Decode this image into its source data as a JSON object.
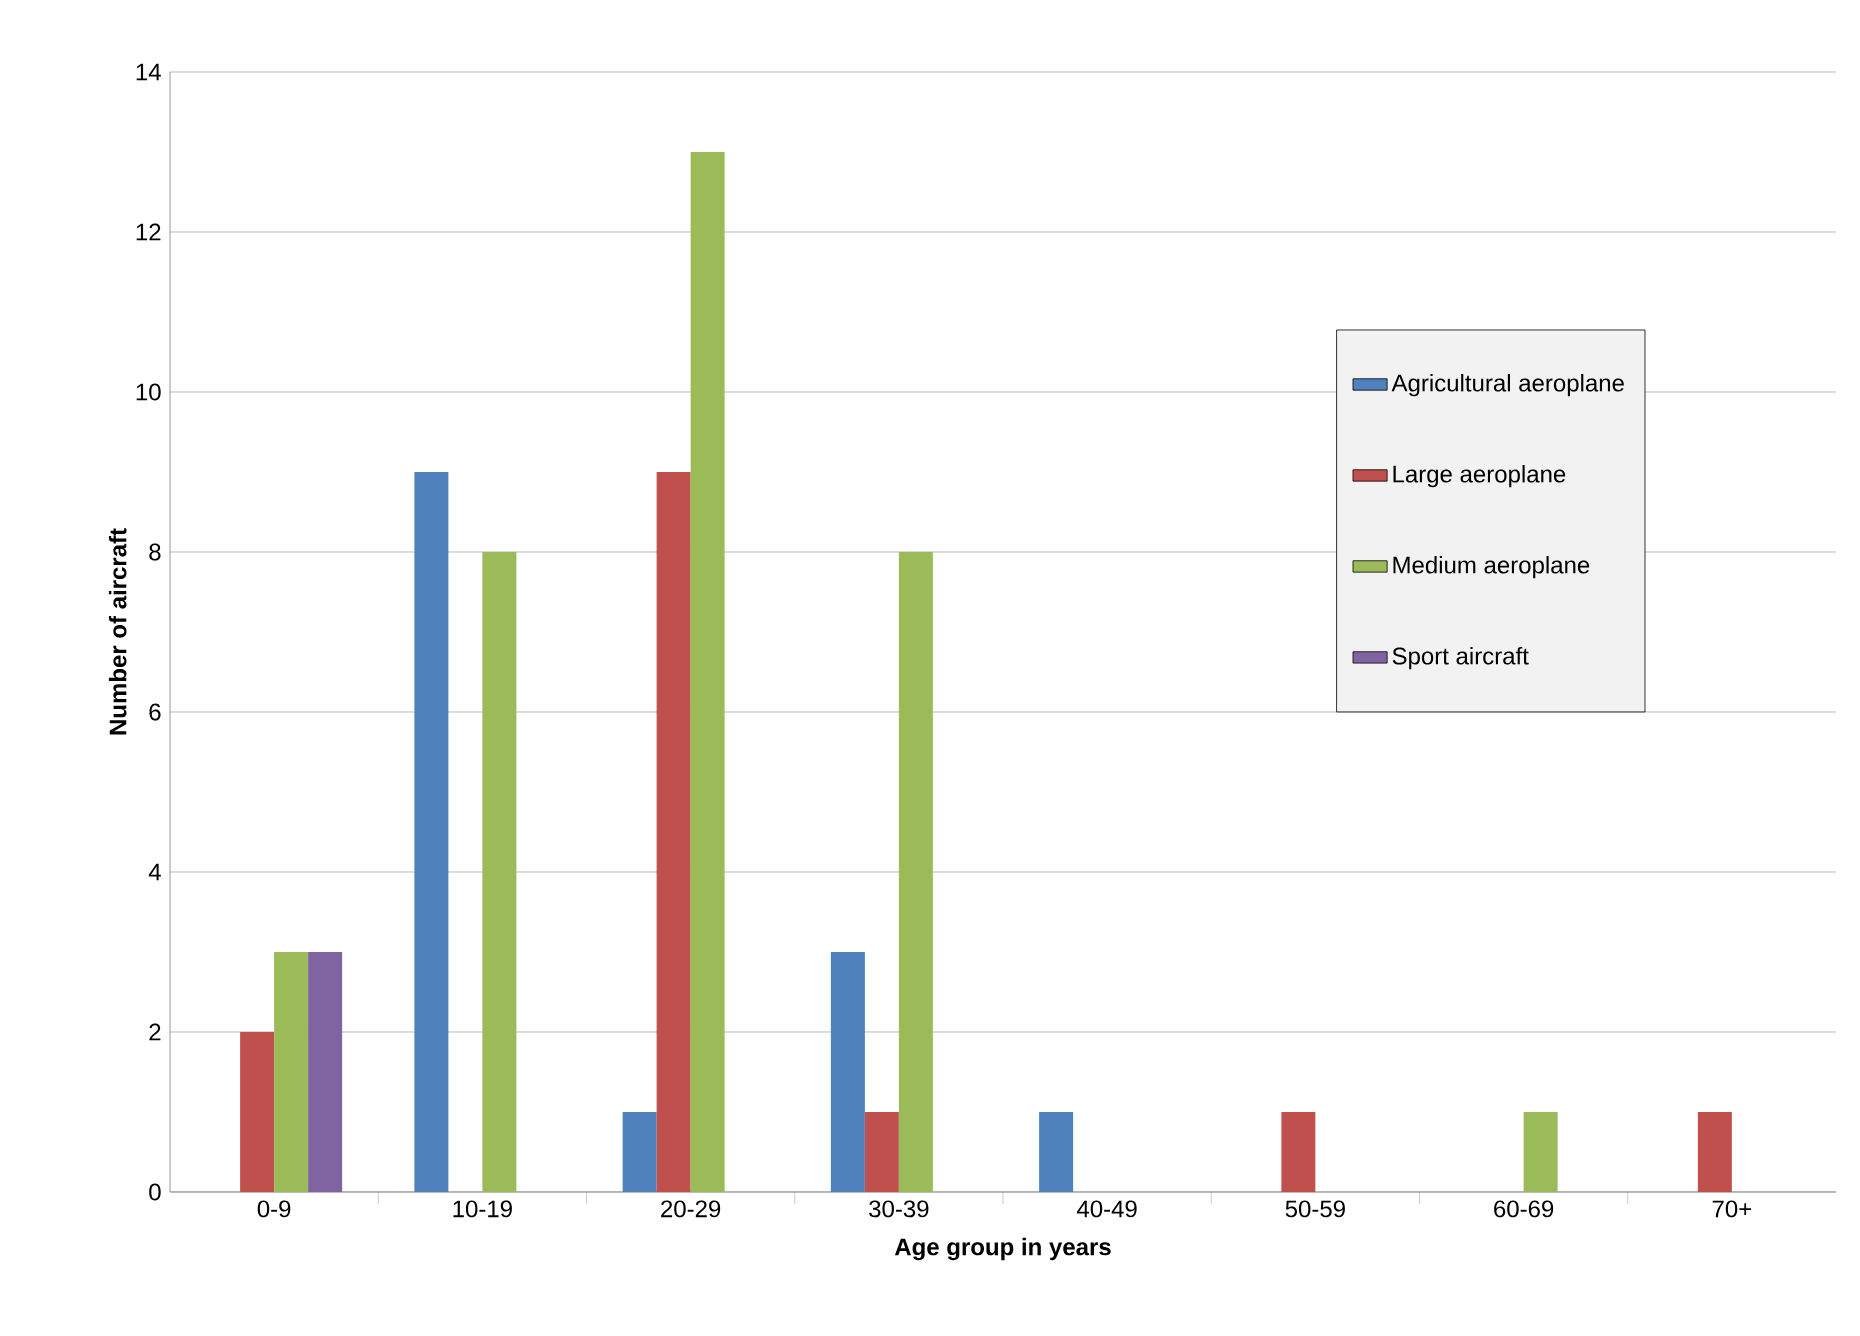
{
  "chart_data": {
    "type": "bar",
    "xlabel": "Age group in years",
    "ylabel": "Number of aircraft",
    "categories": [
      "0-9",
      "10-19",
      "20-29",
      "30-39",
      "40-49",
      "50-59",
      "60-69",
      "70+"
    ],
    "series": [
      {
        "name": "Agricultural aeroplane",
        "color": "#4f81bd",
        "values": [
          0,
          9,
          1,
          3,
          1,
          0,
          0,
          0
        ]
      },
      {
        "name": "Large aeroplane",
        "color": "#c0504d",
        "values": [
          2,
          0,
          9,
          1,
          0,
          1,
          0,
          1
        ]
      },
      {
        "name": "Medium aeroplane",
        "color": "#9bbb59",
        "values": [
          3,
          8,
          13,
          8,
          0,
          0,
          1,
          0
        ]
      },
      {
        "name": "Sport aircraft",
        "color": "#8064a2",
        "values": [
          3,
          0,
          0,
          0,
          0,
          0,
          0,
          0
        ]
      }
    ],
    "ylim": [
      0,
      14
    ],
    "yticks": [
      0,
      2,
      4,
      6,
      8,
      10,
      12,
      14
    ],
    "grid": "y",
    "legend": "right"
  }
}
